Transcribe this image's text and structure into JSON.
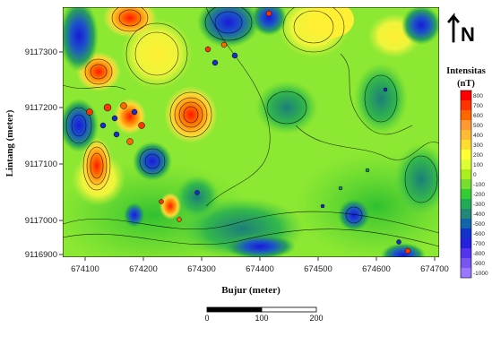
{
  "map": {
    "xlabel": "Bujur (meter)",
    "ylabel": "Lintang (meter)",
    "x_ticks": [
      "674100",
      "674200",
      "674300",
      "674400",
      "674500",
      "674600",
      "674700"
    ],
    "y_ticks": [
      "9117300",
      "9117200",
      "9117100",
      "9117000",
      "9116900"
    ]
  },
  "north_arrow": {
    "label": "N"
  },
  "legend": {
    "title_line1": "Intensitas",
    "title_line2": "(nT)",
    "labels": [
      "800",
      "700",
      "600",
      "500",
      "400",
      "300",
      "200",
      "100",
      "0",
      "-100",
      "-200",
      "-300",
      "-400",
      "-500",
      "-600",
      "-700",
      "-800",
      "-900",
      "-1000"
    ],
    "colors": [
      "#ff0000",
      "#ff3300",
      "#ff6600",
      "#ff9933",
      "#ffbb33",
      "#ffdd33",
      "#ffff33",
      "#ddff33",
      "#aaee22",
      "#77dd33",
      "#33cc33",
      "#22aa55",
      "#228877",
      "#1166aa",
      "#1133cc",
      "#2222dd",
      "#5533ee",
      "#7755ee",
      "#9977ff"
    ]
  },
  "scale_bar": {
    "labels": [
      "0",
      "100",
      "200"
    ]
  },
  "colors": {
    "background_field": "#8cea32",
    "high": "#ff2a00",
    "low": "#1a2bd0",
    "contour": "#000000"
  }
}
